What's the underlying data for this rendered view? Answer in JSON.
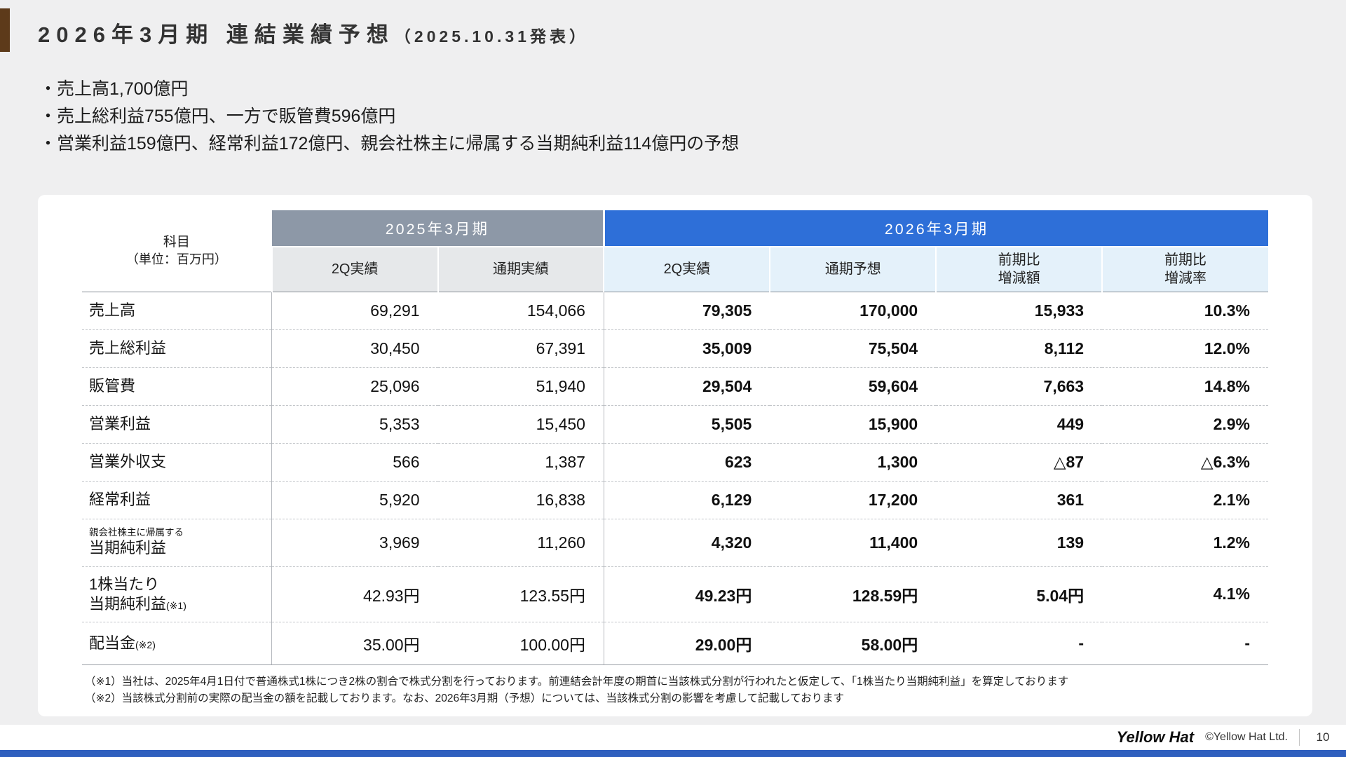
{
  "accent_colors": {
    "title_bar": "#5d3a1a",
    "group_2025": "#8d98a7",
    "group_2026": "#2e6fd8",
    "sub_2025": "#e6e8ea",
    "sub_2026": "#e4f1fa",
    "bottom_strip": "#2f5fbe"
  },
  "header": {
    "title": "2026年3月期 連結業績予想",
    "title_sub": "（2025.10.31発表）"
  },
  "summary": {
    "bullets": [
      "・売上高1,700億円",
      "・売上総利益755億円、一方で販管費596億円",
      "・営業利益159億円、経常利益172億円、親会社株主に帰属する当期純利益114億円の予想"
    ]
  },
  "table": {
    "corner": {
      "line1": "科目",
      "line2": "（単位：百万円）"
    },
    "groups": [
      {
        "label": "2025年3月期"
      },
      {
        "label": "2026年3月期"
      }
    ],
    "columns": [
      {
        "group": "2025",
        "lines": [
          "2Q実績"
        ]
      },
      {
        "group": "2025",
        "lines": [
          "通期実績"
        ]
      },
      {
        "group": "2026",
        "lines": [
          "2Q実績"
        ]
      },
      {
        "group": "2026",
        "lines": [
          "通期予想"
        ]
      },
      {
        "group": "2026",
        "lines": [
          "前期比",
          "増減額"
        ]
      },
      {
        "group": "2026",
        "lines": [
          "前期比",
          "増減率"
        ]
      }
    ],
    "rows": [
      {
        "label_lines": [
          {
            "text": "売上高"
          }
        ],
        "values": [
          "69,291",
          "154,066",
          "79,305",
          "170,000",
          "15,933",
          "10.3%"
        ]
      },
      {
        "label_lines": [
          {
            "text": "売上総利益"
          }
        ],
        "values": [
          "30,450",
          "67,391",
          "35,009",
          "75,504",
          "8,112",
          "12.0%"
        ]
      },
      {
        "label_lines": [
          {
            "text": "販管費"
          }
        ],
        "values": [
          "25,096",
          "51,940",
          "29,504",
          "59,604",
          "7,663",
          "14.8%"
        ]
      },
      {
        "label_lines": [
          {
            "text": "営業利益"
          }
        ],
        "values": [
          "5,353",
          "15,450",
          "5,505",
          "15,900",
          "449",
          "2.9%"
        ]
      },
      {
        "label_lines": [
          {
            "text": "営業外収支"
          }
        ],
        "values": [
          "566",
          "1,387",
          "623",
          "1,300",
          "△87",
          "△6.3%"
        ]
      },
      {
        "label_lines": [
          {
            "text": "経常利益"
          }
        ],
        "values": [
          "5,920",
          "16,838",
          "6,129",
          "17,200",
          "361",
          "2.1%"
        ]
      },
      {
        "label_lines": [
          {
            "text": "親会社株主に帰属する",
            "small": true
          },
          {
            "text": "当期純利益"
          }
        ],
        "values": [
          "3,969",
          "11,260",
          "4,320",
          "11,400",
          "139",
          "1.2%"
        ]
      },
      {
        "label_lines": [
          {
            "text": "1株当たり"
          },
          {
            "text": "当期純利益",
            "note": "(※1)"
          }
        ],
        "values": [
          "42.93円",
          "123.55円",
          "49.23円",
          "128.59円",
          "5.04円",
          "4.1%"
        ]
      },
      {
        "label_lines": [
          {
            "text": "配当金",
            "note": "(※2)"
          }
        ],
        "values": [
          "35.00円",
          "100.00円",
          "29.00円",
          "58.00円",
          "-",
          "-"
        ]
      }
    ],
    "footnotes": [
      "（※1）当社は、2025年4月1日付で普通株式1株につき2株の割合で株式分割を行っております。前連結会計年度の期首に当該株式分割が行われたと仮定して、「1株当たり当期純利益」を算定しております",
      "（※2）当該株式分割前の実際の配当金の額を記載しております。なお、2026年3月期（予想）については、当該株式分割の影響を考慮して記載しております"
    ]
  },
  "footer": {
    "logo": "Yellow Hat",
    "copyright": "©Yellow Hat Ltd.",
    "page_number": "10"
  }
}
